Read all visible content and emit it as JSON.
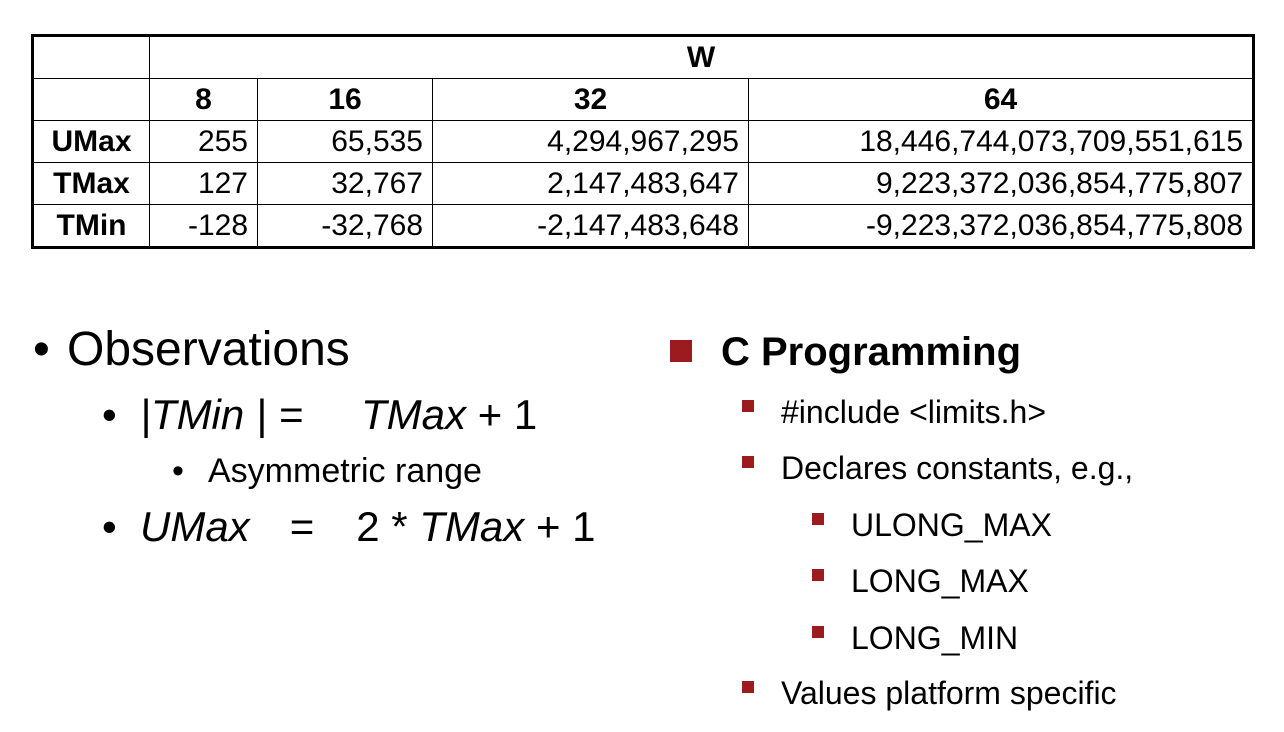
{
  "table": {
    "group_header": "W",
    "columns": [
      "8",
      "16",
      "32",
      "64"
    ],
    "rows": [
      {
        "label": "UMax",
        "values": [
          "255",
          "65,535",
          "4,294,967,295",
          "18,446,744,073,709,551,615"
        ]
      },
      {
        "label": "TMax",
        "values": [
          "127",
          "32,767",
          "2,147,483,647",
          "9,223,372,036,854,775,807"
        ]
      },
      {
        "label": "TMin",
        "values": [
          "-128",
          "-32,768",
          "-2,147,483,648",
          "-9,223,372,036,854,775,808"
        ]
      }
    ]
  },
  "observations": {
    "bullet": "•",
    "title": "Observations",
    "item1": {
      "lhs": "|TMin | =",
      "var": "TMax",
      "rhs": "+ 1"
    },
    "sub_item": "Asymmetric range",
    "item2": {
      "lhs": "UMax",
      "eq": "=",
      "coef": "2 *",
      "var": "TMax",
      "rhs": "+ 1"
    }
  },
  "c_programming": {
    "title": "C Programming",
    "items": [
      "#include <limits.h>",
      "Declares constants, e.g.,",
      "ULONG_MAX",
      "LONG_MAX",
      "LONG_MIN",
      "Values platform specific"
    ],
    "bullet_color": "#9b1b1f"
  }
}
